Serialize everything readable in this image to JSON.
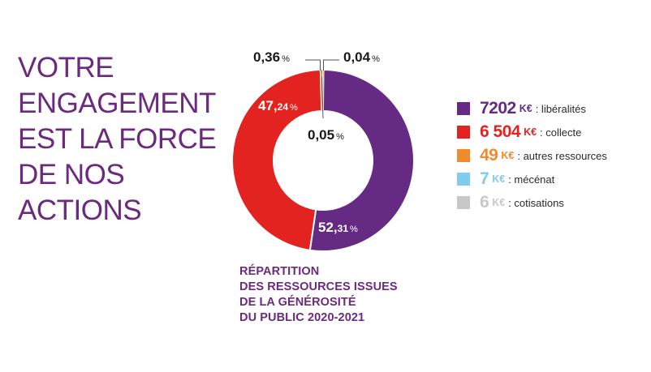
{
  "headline": [
    "VOTRE",
    "ENGAGEMENT",
    "EST LA FORCE",
    "DE NOS",
    "ACTIONS"
  ],
  "caption": [
    "RÉPARTITION",
    "DES RESSOURCES ISSUES",
    "DE LA GÉNÉROSITÉ",
    "DU PUBLIC 2020-2021"
  ],
  "colors": {
    "purple": "#652a83",
    "red": "#e2231f",
    "orange": "#ef8a2e",
    "lightblue": "#7fccef",
    "grey": "#c8c8c8",
    "title": "#6b2a7e"
  },
  "legend": [
    {
      "value": "7202",
      "unit": "K€",
      "label": ": libéralités",
      "color": "#652a83"
    },
    {
      "value": "6 504",
      "unit": "K€",
      "label": ": collecte",
      "color": "#e2231f"
    },
    {
      "value": "49",
      "unit": "K€",
      "label": ": autres ressources",
      "color": "#ef8a2e"
    },
    {
      "value": "7",
      "unit": "K€",
      "label": ": mécénat",
      "color": "#7fccef"
    },
    {
      "value": "6",
      "unit": "K€",
      "label": ": cotisations",
      "color": "#c8c8c8"
    }
  ],
  "chart_data": {
    "type": "pie",
    "donut": true,
    "title": "RÉPARTITION DES RESSOURCES ISSUES DE LA GÉNÉROSITÉ DU PUBLIC 2020-2021",
    "unit": "K€",
    "categories": [
      "libéralités",
      "collecte",
      "autres ressources",
      "mécénat",
      "cotisations"
    ],
    "values": [
      7202,
      6504,
      49,
      7,
      6
    ],
    "percent_labels": [
      {
        "int": "52,",
        "dec": "31",
        "pct": "%"
      },
      {
        "int": "47,",
        "dec": "24",
        "pct": "%"
      },
      {
        "int": "0,36",
        "dec": "",
        "pct": "%"
      },
      {
        "int": "0,05",
        "dec": "",
        "pct": "%"
      },
      {
        "int": "0,04",
        "dec": "",
        "pct": "%"
      }
    ]
  }
}
